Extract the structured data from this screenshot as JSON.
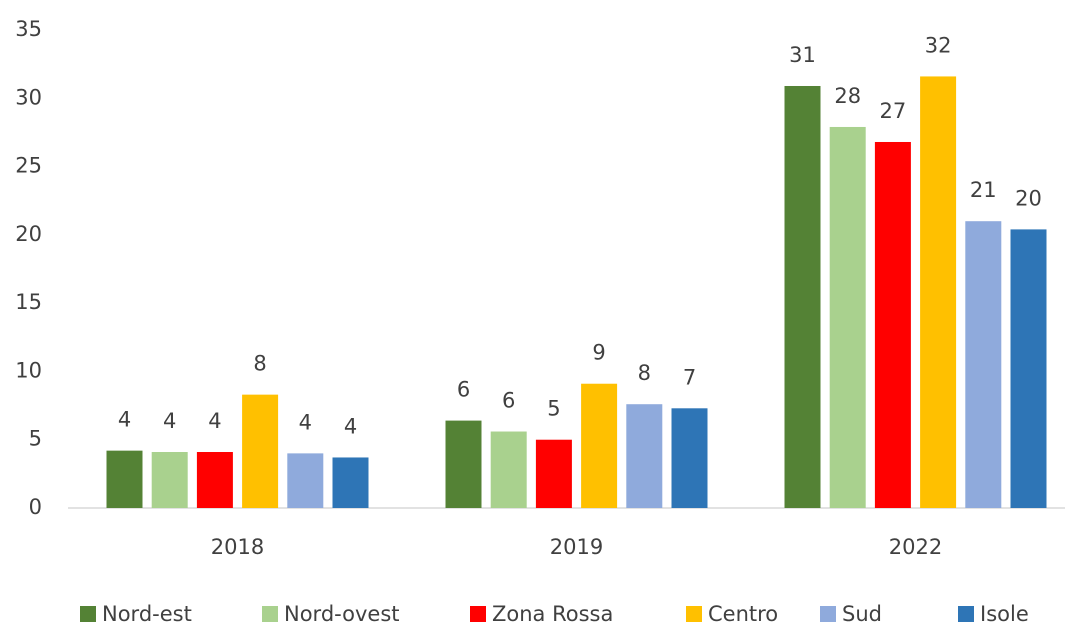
{
  "chart_data": {
    "type": "bar",
    "categories": [
      "2018",
      "2019",
      "2022"
    ],
    "series": [
      {
        "name": "Nord-est",
        "color": "#548235",
        "values": [
          4.2,
          6.4,
          30.9
        ],
        "value_labels": [
          "4",
          "6",
          "31"
        ]
      },
      {
        "name": "Nord-ovest",
        "color": "#a9d18e",
        "values": [
          4.1,
          5.6,
          27.9
        ],
        "value_labels": [
          "4",
          "6",
          "28"
        ]
      },
      {
        "name": "Zona Rossa",
        "color": "#ff0000",
        "values": [
          4.1,
          5.0,
          26.8
        ],
        "value_labels": [
          "4",
          "5",
          "27"
        ]
      },
      {
        "name": "Centro",
        "color": "#ffc000",
        "values": [
          8.3,
          9.1,
          31.6
        ],
        "value_labels": [
          "8",
          "9",
          "32"
        ]
      },
      {
        "name": "Sud",
        "color": "#8faadc",
        "values": [
          4.0,
          7.6,
          21.0
        ],
        "value_labels": [
          "4",
          "8",
          "21"
        ]
      },
      {
        "name": "Isole",
        "color": "#2e75b6",
        "values": [
          3.7,
          7.3,
          20.4
        ],
        "value_labels": [
          "4",
          "7",
          "20"
        ]
      }
    ],
    "ylim": [
      0,
      35
    ],
    "yticks": [
      0,
      5,
      10,
      15,
      20,
      25,
      30,
      35
    ],
    "grid": false,
    "legend": "bottom"
  }
}
